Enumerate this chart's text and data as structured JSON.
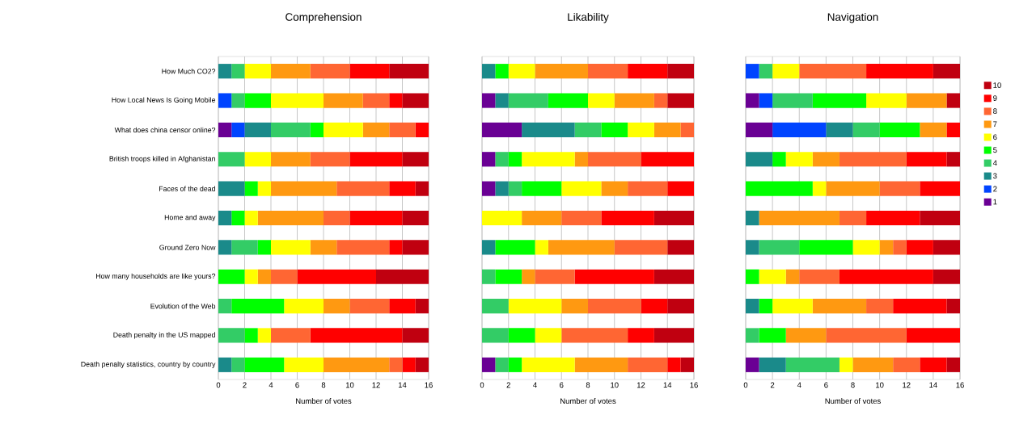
{
  "chart_data": [
    {
      "type": "bar",
      "orientation": "horizontal",
      "stacked": true,
      "title": "Comprehension",
      "xlabel": "Number of votes",
      "categories": [
        "How Much CO2?",
        "How Local News Is Going Mobile",
        "What does china censor online?",
        "British troops killed in Afghanistan",
        "Faces of the dead",
        "Home and away",
        "Ground Zero Now",
        "How many households are like yours?",
        "Evolution of the Web",
        "Death penalty in the US mapped",
        "Death penalty statistics, country by country"
      ],
      "xlim": [
        0,
        16
      ],
      "xticks": [
        0,
        2,
        4,
        6,
        8,
        10,
        12,
        14,
        16
      ],
      "grid": "x",
      "legend": false,
      "series": [
        {
          "color": "#6a0094",
          "values": [
            0,
            0,
            1,
            0,
            0,
            0,
            0,
            0,
            0,
            0,
            0
          ]
        },
        {
          "color": "#0044ff",
          "values": [
            0,
            1,
            1,
            0,
            0,
            0,
            0,
            0,
            0,
            0,
            0
          ]
        },
        {
          "color": "#1a8a8a",
          "values": [
            1,
            0,
            2,
            0,
            2,
            1,
            1,
            0,
            0,
            0,
            1
          ]
        },
        {
          "color": "#33cc66",
          "values": [
            1,
            1,
            3,
            2,
            0,
            0,
            2,
            0,
            1,
            2,
            1
          ]
        },
        {
          "color": "#00ff00",
          "values": [
            0,
            2,
            1,
            0,
            1,
            1,
            1,
            2,
            4,
            1,
            3
          ]
        },
        {
          "color": "#ffff00",
          "values": [
            2,
            4,
            3,
            2,
            1,
            1,
            3,
            1,
            3,
            1,
            3
          ]
        },
        {
          "color": "#ff9911",
          "values": [
            3,
            3,
            2,
            3,
            5,
            5,
            2,
            1,
            2,
            0,
            5
          ]
        },
        {
          "color": "#ff6633",
          "values": [
            3,
            2,
            2,
            3,
            4,
            2,
            4,
            2,
            3,
            3,
            1
          ]
        },
        {
          "color": "#ff0000",
          "values": [
            3,
            1,
            1,
            4,
            2,
            4,
            1,
            6,
            2,
            7,
            1
          ]
        },
        {
          "color": "#c00010",
          "values": [
            3,
            2,
            0,
            2,
            1,
            2,
            2,
            4,
            1,
            2,
            1
          ]
        }
      ]
    },
    {
      "type": "bar",
      "orientation": "horizontal",
      "stacked": true,
      "title": "Likability",
      "xlabel": "Number of votes",
      "categories": [
        null,
        null,
        null,
        null,
        null,
        null,
        null,
        null,
        null,
        null,
        null
      ],
      "tick_labels": "x",
      "xlim": [
        0,
        16
      ],
      "xticks": [
        0,
        2,
        4,
        6,
        8,
        10,
        12,
        14,
        16
      ],
      "grid": "x",
      "legend": false,
      "series": [
        {
          "color": "#6a0094",
          "values": [
            0,
            1,
            3,
            1,
            1,
            0,
            0,
            0,
            0,
            0,
            1
          ]
        },
        {
          "color": "#0044ff",
          "values": [
            0,
            0,
            0,
            0,
            0,
            0,
            0,
            0,
            0,
            0,
            0
          ]
        },
        {
          "color": "#1a8a8a",
          "values": [
            1,
            1,
            4,
            0,
            1,
            0,
            1,
            0,
            0,
            0,
            0
          ]
        },
        {
          "color": "#33cc66",
          "values": [
            0,
            3,
            2,
            1,
            1,
            0,
            0,
            1,
            2,
            2,
            1
          ]
        },
        {
          "color": "#00ff00",
          "values": [
            1,
            3,
            2,
            1,
            3,
            0,
            3,
            2,
            0,
            2,
            1
          ]
        },
        {
          "color": "#ffff00",
          "values": [
            2,
            2,
            2,
            4,
            3,
            3,
            1,
            0,
            4,
            2,
            4
          ]
        },
        {
          "color": "#ff9911",
          "values": [
            4,
            3,
            2,
            1,
            2,
            3,
            5,
            1,
            2,
            0,
            4
          ]
        },
        {
          "color": "#ff6633",
          "values": [
            3,
            1,
            1,
            4,
            3,
            3,
            4,
            3,
            4,
            5,
            3
          ]
        },
        {
          "color": "#ff0000",
          "values": [
            3,
            0,
            0,
            4,
            2,
            4,
            0,
            6,
            2,
            2,
            1
          ]
        },
        {
          "color": "#c00010",
          "values": [
            2,
            2,
            0,
            0,
            0,
            3,
            2,
            3,
            2,
            3,
            1
          ]
        }
      ]
    },
    {
      "type": "bar",
      "orientation": "horizontal",
      "stacked": true,
      "title": "Navigation",
      "xlabel": "Number of votes",
      "categories": [
        null,
        null,
        null,
        null,
        null,
        null,
        null,
        null,
        null,
        null,
        null
      ],
      "tick_labels": "x",
      "xlim": [
        0,
        16
      ],
      "xticks": [
        0,
        2,
        4,
        6,
        8,
        10,
        12,
        14,
        16
      ],
      "grid": "x",
      "legend": "right",
      "series": [
        {
          "name": "1",
          "color": "#6a0094",
          "values": [
            0,
            1,
            2,
            0,
            0,
            0,
            0,
            0,
            0,
            0,
            1
          ]
        },
        {
          "name": "2",
          "color": "#0044ff",
          "values": [
            1,
            1,
            4,
            0,
            0,
            0,
            0,
            0,
            0,
            0,
            0
          ]
        },
        {
          "name": "3",
          "color": "#1a8a8a",
          "values": [
            0,
            0,
            2,
            2,
            0,
            1,
            1,
            0,
            1,
            0,
            2
          ]
        },
        {
          "name": "4",
          "color": "#33cc66",
          "values": [
            1,
            3,
            2,
            0,
            0,
            0,
            3,
            0,
            0,
            1,
            4
          ]
        },
        {
          "name": "5",
          "color": "#00ff00",
          "values": [
            0,
            4,
            3,
            1,
            5,
            0,
            4,
            1,
            1,
            2,
            0
          ]
        },
        {
          "name": "6",
          "color": "#ffff00",
          "values": [
            2,
            3,
            0,
            2,
            1,
            0,
            2,
            2,
            3,
            0,
            1
          ]
        },
        {
          "name": "7",
          "color": "#ff9911",
          "values": [
            0,
            3,
            2,
            2,
            4,
            6,
            1,
            1,
            4,
            3,
            3
          ]
        },
        {
          "name": "8",
          "color": "#ff6633",
          "values": [
            5,
            0,
            0,
            5,
            3,
            2,
            1,
            3,
            2,
            6,
            2
          ]
        },
        {
          "name": "9",
          "color": "#ff0000",
          "values": [
            5,
            0,
            1,
            3,
            3,
            4,
            2,
            7,
            4,
            4,
            2
          ]
        },
        {
          "name": "10",
          "color": "#c00010",
          "values": [
            2,
            1,
            0,
            1,
            0,
            3,
            2,
            2,
            1,
            0,
            1
          ]
        }
      ]
    }
  ]
}
